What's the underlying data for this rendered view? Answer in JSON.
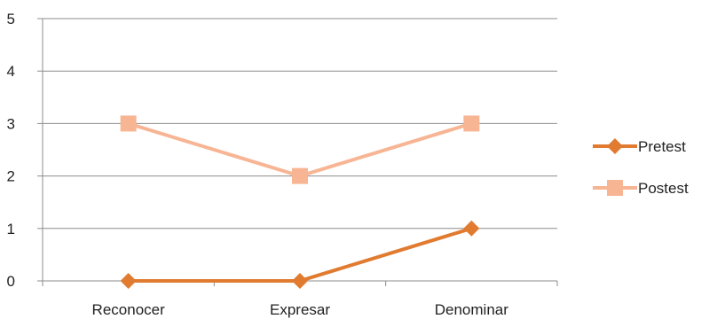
{
  "chart_data": {
    "type": "line",
    "title": "",
    "xlabel": "",
    "ylabel": "",
    "categories": [
      "Reconocer",
      "Expresar",
      "Denominar"
    ],
    "ylim": [
      0,
      5
    ],
    "yticks": [
      "0",
      "1",
      "2",
      "3",
      "4",
      "5"
    ],
    "grid": true,
    "legend_position": "right",
    "series": [
      {
        "name": "Pretest",
        "values": [
          0,
          0,
          1
        ],
        "color": "#e07b30",
        "marker": "diamond"
      },
      {
        "name": "Postest",
        "values": [
          3,
          2,
          3
        ],
        "color": "#f7b594",
        "marker": "square"
      }
    ]
  }
}
